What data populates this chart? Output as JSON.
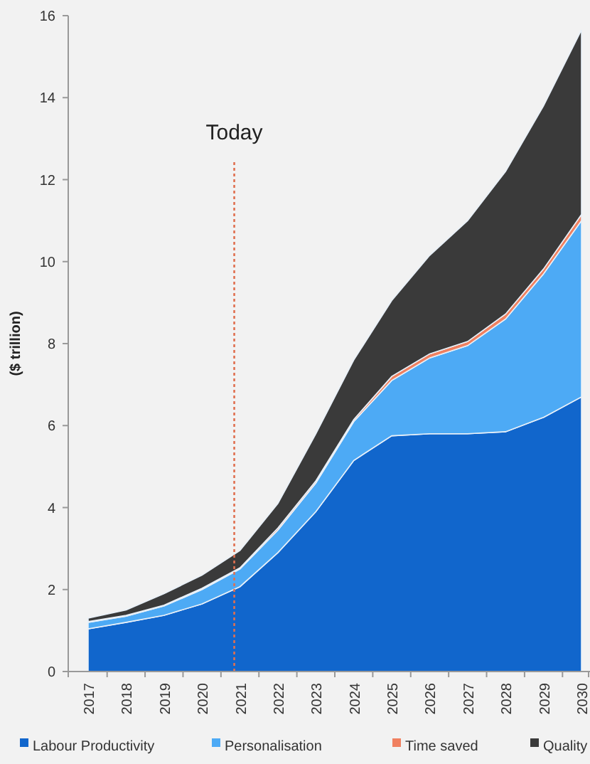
{
  "chart_data": {
    "type": "area",
    "stacked": true,
    "ylabel": "($ trillion)",
    "categories": [
      "2017",
      "2018",
      "2019",
      "2020",
      "2021",
      "2022",
      "2023",
      "2024",
      "2025",
      "2026",
      "2027",
      "2028",
      "2029",
      "2030"
    ],
    "series": [
      {
        "name": "Labour Productivity",
        "color": "#1166cc",
        "values": [
          1.04,
          1.2,
          1.37,
          1.65,
          2.07,
          2.9,
          3.9,
          5.15,
          5.75,
          5.8,
          5.8,
          5.85,
          6.2,
          6.7
        ]
      },
      {
        "name": "Personalisation",
        "color": "#4daaf5",
        "values": [
          0.16,
          0.15,
          0.23,
          0.35,
          0.43,
          0.55,
          0.7,
          0.95,
          1.35,
          1.85,
          2.15,
          2.75,
          3.5,
          4.3
        ]
      },
      {
        "name": "Time saved",
        "color": "#f08060",
        "values": [
          0.02,
          0.02,
          0.02,
          0.03,
          0.03,
          0.05,
          0.05,
          0.05,
          0.1,
          0.1,
          0.1,
          0.12,
          0.12,
          0.15
        ]
      },
      {
        "name": "Quality",
        "color": "#3a3a3a",
        "values": [
          0.08,
          0.13,
          0.28,
          0.32,
          0.42,
          0.6,
          1.15,
          1.45,
          1.85,
          2.4,
          2.95,
          3.48,
          3.98,
          4.5
        ]
      }
    ],
    "ylim": [
      0,
      16
    ],
    "yticks": [
      0,
      2,
      4,
      6,
      8,
      10,
      12,
      14,
      16
    ],
    "grid": false,
    "legend": "bottom",
    "ref_lines": [
      {
        "axis": "x",
        "value": "2021",
        "label": "Today",
        "color": "#e07050",
        "line_style": "dotted"
      }
    ]
  }
}
